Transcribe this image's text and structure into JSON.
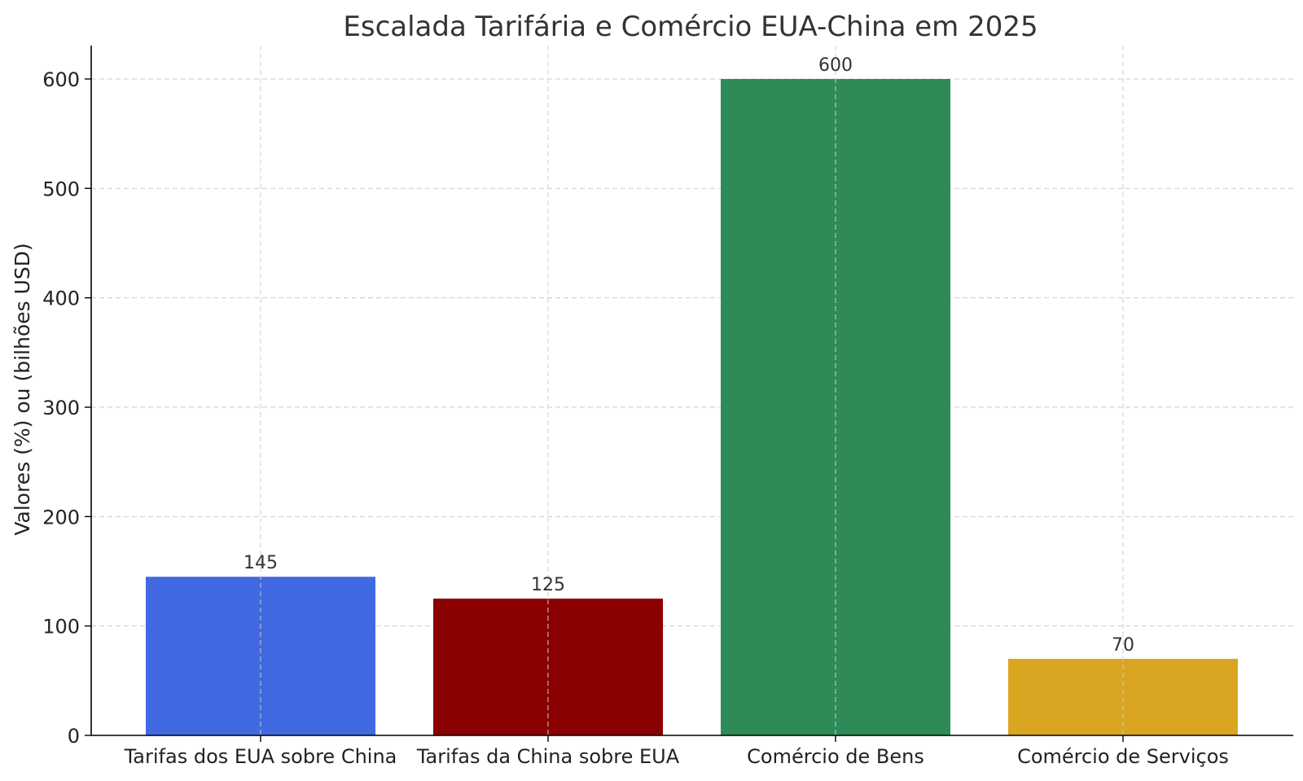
{
  "chart_data": {
    "type": "bar",
    "title": "Escalada Tarifária e Comércio EUA-China em 2025",
    "xlabel": "",
    "ylabel": "Valores (%) ou (bilhões USD)",
    "categories": [
      "Tarifas dos EUA sobre China",
      "Tarifas da China sobre EUA",
      "Comércio de Bens",
      "Comércio de Serviços"
    ],
    "values": [
      145,
      125,
      600,
      70
    ],
    "data_labels": [
      "145",
      "125",
      "600",
      "70"
    ],
    "colors": [
      "#4169e1",
      "#8b0000",
      "#2e8b57",
      "#daa520"
    ],
    "ylim": [
      0,
      630
    ],
    "yticks": [
      0,
      100,
      200,
      300,
      400,
      500,
      600
    ],
    "grid": true
  }
}
